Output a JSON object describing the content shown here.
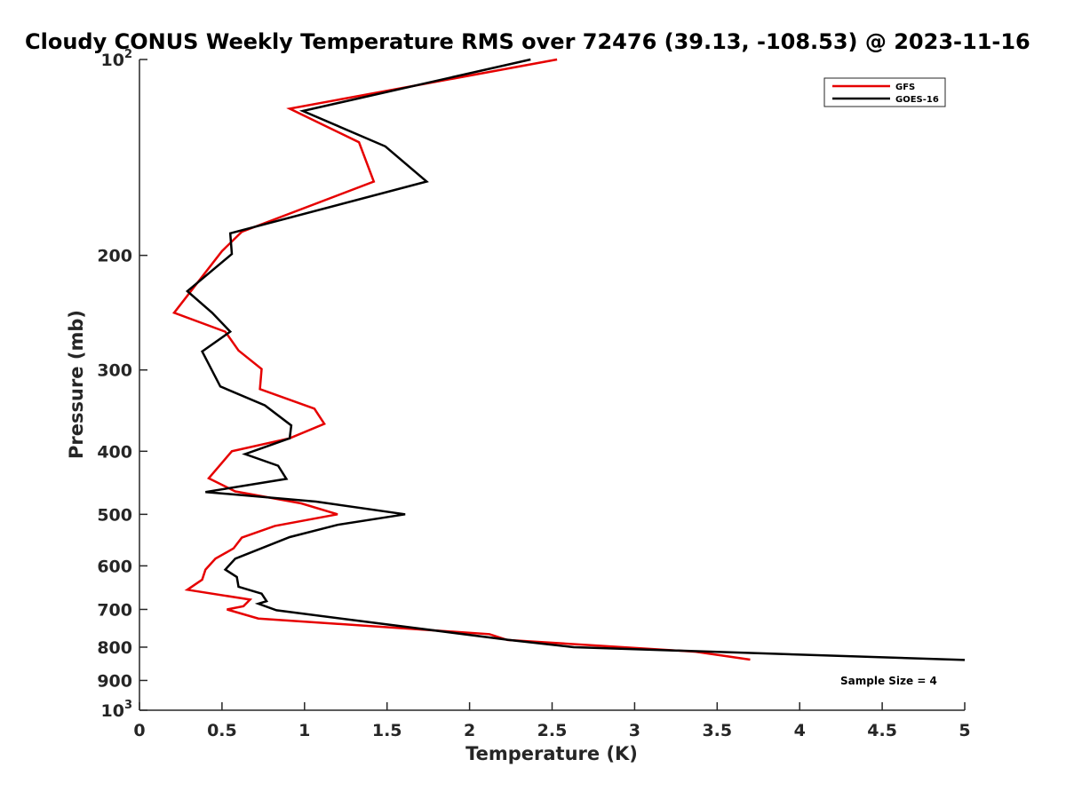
{
  "chart_data": {
    "type": "line",
    "title": "Cloudy CONUS Weekly Temperature RMS over 72476 (39.13, -108.53) @ 2023-11-16",
    "xlabel": "Temperature (K)",
    "ylabel": "Pressure (mb)",
    "xlim": [
      0,
      5
    ],
    "ylim": [
      100,
      1000
    ],
    "y_scale": "log",
    "y_reversed": true,
    "x_ticks": [
      "0",
      "0.5",
      "1",
      "1.5",
      "2",
      "2.5",
      "3",
      "3.5",
      "4",
      "4.5",
      "5"
    ],
    "y_ticks": [
      {
        "value": 100,
        "base": "10",
        "exp": "2"
      },
      {
        "value": 200,
        "label": "200"
      },
      {
        "value": 300,
        "label": "300"
      },
      {
        "value": 400,
        "label": "400"
      },
      {
        "value": 500,
        "label": "500"
      },
      {
        "value": 600,
        "label": "600"
      },
      {
        "value": 700,
        "label": "700"
      },
      {
        "value": 800,
        "label": "800"
      },
      {
        "value": 900,
        "label": "900"
      },
      {
        "value": 1000,
        "base": "10",
        "exp": "3"
      }
    ],
    "grid": false,
    "legend_position": "top-right",
    "annotation": "Sample Size = 4",
    "series": [
      {
        "name": "GFS",
        "color": "#e60000",
        "points": [
          {
            "x": 2.53,
            "y": 100
          },
          {
            "x": 0.91,
            "y": 119
          },
          {
            "x": 1.33,
            "y": 134
          },
          {
            "x": 1.42,
            "y": 154
          },
          {
            "x": 0.62,
            "y": 184
          },
          {
            "x": 0.5,
            "y": 197
          },
          {
            "x": 0.21,
            "y": 245
          },
          {
            "x": 0.52,
            "y": 262
          },
          {
            "x": 0.6,
            "y": 280
          },
          {
            "x": 0.74,
            "y": 299
          },
          {
            "x": 0.73,
            "y": 321
          },
          {
            "x": 1.06,
            "y": 344
          },
          {
            "x": 1.12,
            "y": 363
          },
          {
            "x": 0.91,
            "y": 382
          },
          {
            "x": 0.56,
            "y": 400
          },
          {
            "x": 0.42,
            "y": 440
          },
          {
            "x": 0.58,
            "y": 461
          },
          {
            "x": 0.98,
            "y": 481
          },
          {
            "x": 1.2,
            "y": 500
          },
          {
            "x": 0.82,
            "y": 521
          },
          {
            "x": 0.62,
            "y": 543
          },
          {
            "x": 0.57,
            "y": 564
          },
          {
            "x": 0.46,
            "y": 585
          },
          {
            "x": 0.4,
            "y": 608
          },
          {
            "x": 0.38,
            "y": 630
          },
          {
            "x": 0.29,
            "y": 653
          },
          {
            "x": 0.67,
            "y": 676
          },
          {
            "x": 0.63,
            "y": 692
          },
          {
            "x": 0.53,
            "y": 700
          },
          {
            "x": 0.72,
            "y": 723
          },
          {
            "x": 2.12,
            "y": 764
          },
          {
            "x": 2.23,
            "y": 780
          },
          {
            "x": 3.37,
            "y": 813
          },
          {
            "x": 3.7,
            "y": 836
          }
        ]
      },
      {
        "name": "GOES-16",
        "color": "#000000",
        "points": [
          {
            "x": 2.37,
            "y": 100
          },
          {
            "x": 0.99,
            "y": 120
          },
          {
            "x": 1.49,
            "y": 136
          },
          {
            "x": 1.74,
            "y": 154
          },
          {
            "x": 0.55,
            "y": 185
          },
          {
            "x": 0.56,
            "y": 199
          },
          {
            "x": 0.29,
            "y": 227
          },
          {
            "x": 0.44,
            "y": 245
          },
          {
            "x": 0.55,
            "y": 262
          },
          {
            "x": 0.38,
            "y": 281
          },
          {
            "x": 0.49,
            "y": 318
          },
          {
            "x": 0.76,
            "y": 340
          },
          {
            "x": 0.92,
            "y": 365
          },
          {
            "x": 0.91,
            "y": 382
          },
          {
            "x": 0.64,
            "y": 404
          },
          {
            "x": 0.84,
            "y": 421
          },
          {
            "x": 0.89,
            "y": 441
          },
          {
            "x": 0.4,
            "y": 462
          },
          {
            "x": 1.07,
            "y": 478
          },
          {
            "x": 1.61,
            "y": 500
          },
          {
            "x": 1.2,
            "y": 519
          },
          {
            "x": 0.91,
            "y": 542
          },
          {
            "x": 0.58,
            "y": 585
          },
          {
            "x": 0.52,
            "y": 608
          },
          {
            "x": 0.59,
            "y": 624
          },
          {
            "x": 0.6,
            "y": 646
          },
          {
            "x": 0.74,
            "y": 662
          },
          {
            "x": 0.77,
            "y": 680
          },
          {
            "x": 0.72,
            "y": 686
          },
          {
            "x": 0.83,
            "y": 702
          },
          {
            "x": 2.24,
            "y": 780
          },
          {
            "x": 2.63,
            "y": 800
          },
          {
            "x": 5.0,
            "y": 837
          }
        ]
      }
    ]
  }
}
